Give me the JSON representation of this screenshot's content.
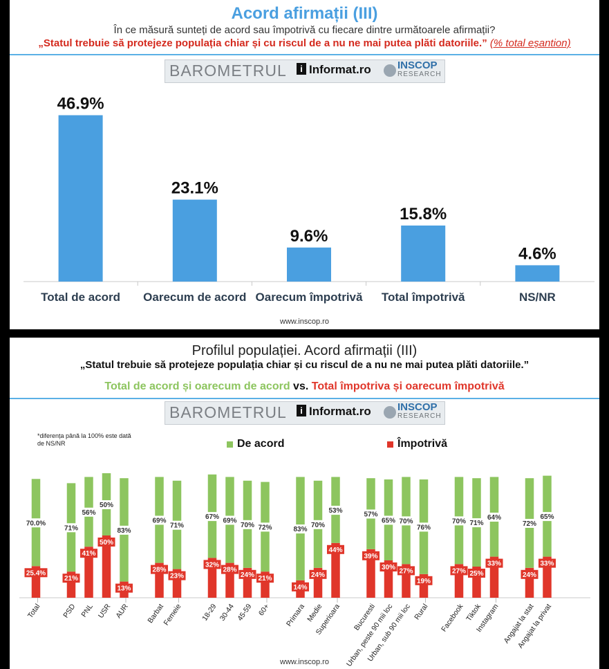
{
  "panel1": {
    "title": "Acord afirmații (III)",
    "subtitle": "În ce măsură sunteți de acord sau împotrivă cu fiecare dintre următoarele afirmații?",
    "statement": "„Statul trebuie să protejeze populația chiar și cu riscul de a nu ne mai putea plăti datoriile.”",
    "sample_note": "(% total eșantion)",
    "footer": "www.inscop.ro"
  },
  "logo": {
    "brand": "BAROMETRUL",
    "partner": "Informat",
    "partner_suffix": "ro",
    "partner_mark": "i",
    "research_top": "INSCOP",
    "research_bottom": "RESEARCH"
  },
  "panel2": {
    "title": "Profilul populației. Acord afirmații (III)",
    "statement": "„Statul trebuie să protejeze populația chiar și cu riscul de a nu ne mai putea plăti datoriile.”",
    "vs_left": "Total de acord și oarecum de acord",
    "vs_mid": " vs. ",
    "vs_right": "Total împotriva și oarecum împotrivă",
    "note": "*diferența până la 100% este dată de NS/NR",
    "footer": "www.inscop.ro"
  },
  "colors": {
    "bar_blue": "#4a9fe0",
    "agree": "#8dc55f",
    "against": "#e0362a",
    "label_text": "#2d3e50"
  },
  "chart_data": [
    {
      "type": "bar",
      "categories": [
        "Total de acord",
        "Oarecum de acord",
        "Oarecum împotrivă",
        "Total împotrivă",
        "NS/NR"
      ],
      "values": [
        46.9,
        23.1,
        9.6,
        15.8,
        4.6
      ],
      "value_labels": [
        "46.9%",
        "23.1%",
        "9.6%",
        "15.8%",
        "4.6%"
      ],
      "ylim": [
        0,
        55
      ],
      "grid": false
    },
    {
      "type": "bar",
      "stacked": true,
      "categories": [
        "Total",
        "PSD",
        "PNL",
        "USR",
        "AUR",
        "Barbat",
        "Femeie",
        "18-29",
        "30-44",
        "45-59",
        "60+",
        "Primara",
        "Medie",
        "Superioara",
        "Bucuresti",
        "Urban, peste 90 mii loc",
        "Urban, sub 90 mii loc",
        "Rural",
        "Facebook",
        "Tiktok",
        "Instagram",
        "Angajat la stat",
        "Angajat la privat"
      ],
      "groups": [
        [
          0
        ],
        [
          1,
          2,
          3,
          4
        ],
        [
          5,
          6
        ],
        [
          7,
          8,
          9,
          10
        ],
        [
          11,
          12,
          13
        ],
        [
          14,
          15,
          16,
          17
        ],
        [
          18,
          19,
          20
        ],
        [
          21,
          22
        ]
      ],
      "series": [
        {
          "name": "Împotrivă",
          "values": [
            25.4,
            21,
            41,
            50,
            13,
            28,
            23,
            32,
            28,
            24,
            21,
            14,
            24,
            44,
            39,
            30,
            27,
            19,
            27,
            25,
            33,
            24,
            33
          ],
          "labels": [
            "25.4%",
            "21%",
            "41%",
            "50%",
            "13%",
            "28%",
            "23%",
            "32%",
            "28%",
            "24%",
            "21%",
            "14%",
            "24%",
            "44%",
            "39%",
            "30%",
            "27%",
            "19%",
            "27%",
            "25%",
            "33%",
            "24%",
            "33%"
          ]
        },
        {
          "name": "De acord",
          "values": [
            70.0,
            71,
            56,
            50,
            83,
            69,
            71,
            67,
            69,
            70,
            72,
            83,
            70,
            53,
            57,
            65,
            70,
            76,
            70,
            71,
            64,
            72,
            65
          ],
          "labels": [
            "70.0%",
            "71%",
            "56%",
            "50%",
            "83%",
            "69%",
            "71%",
            "67%",
            "69%",
            "70%",
            "72%",
            "83%",
            "70%",
            "53%",
            "57%",
            "65%",
            "70%",
            "76%",
            "70%",
            "71%",
            "64%",
            "72%",
            "65%"
          ]
        }
      ],
      "legend": "top",
      "ylim": [
        0,
        100
      ],
      "grid": false
    }
  ]
}
